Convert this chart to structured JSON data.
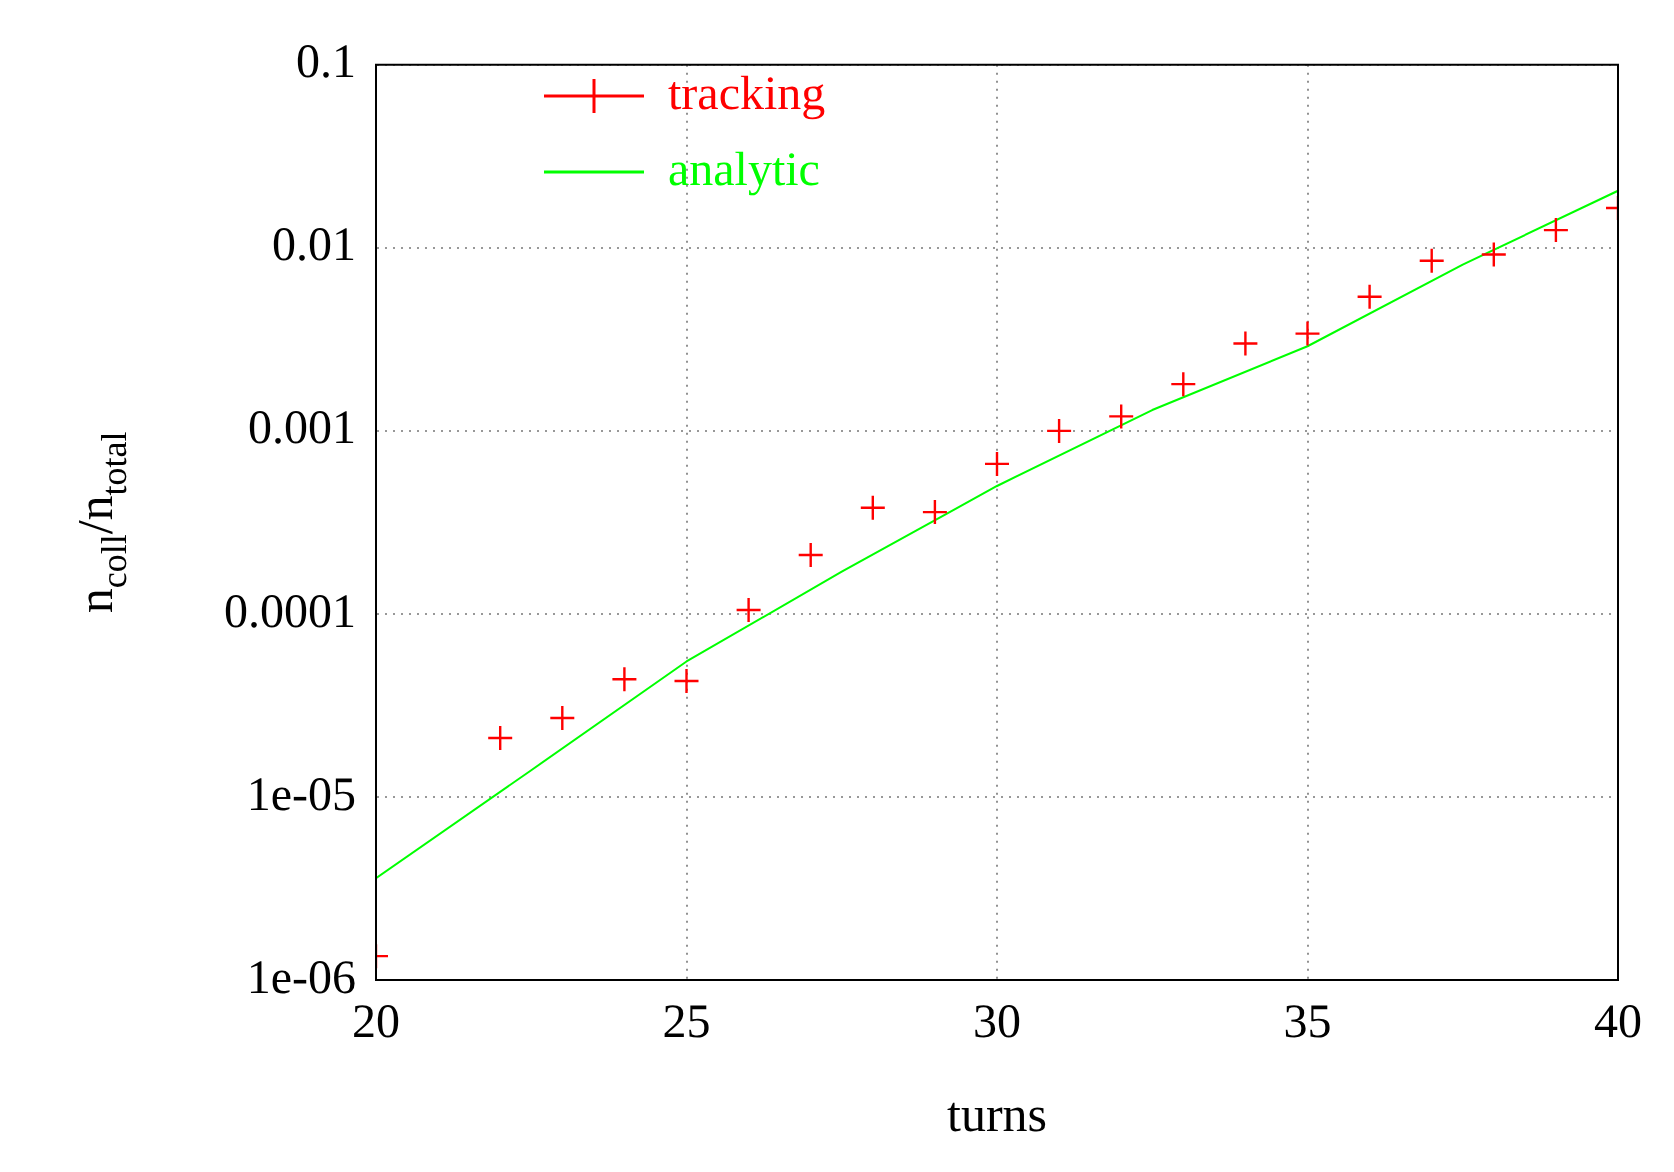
{
  "chart_data": {
    "type": "scatter",
    "xlabel": "turns",
    "ylabel": "n$_{coll}$/n$_{total}$",
    "xlim": [
      20,
      40
    ],
    "xticks": [
      20,
      25,
      30,
      35,
      40
    ],
    "ylim": [
      1e-06,
      0.1
    ],
    "yticks": [
      {
        "value": 1e-06,
        "label": "1e-06"
      },
      {
        "value": 1e-05,
        "label": "1e-05"
      },
      {
        "value": 0.0001,
        "label": "0.0001"
      },
      {
        "value": 0.001,
        "label": "0.001"
      },
      {
        "value": 0.01,
        "label": "0.01"
      },
      {
        "value": 0.1,
        "label": "0.1"
      }
    ],
    "log": "y",
    "grid": true,
    "legend": "top left",
    "series": [
      {
        "name": "tracking",
        "type": "scatter",
        "marker": "cross",
        "color": "#ff0000",
        "x": [
          20,
          22,
          23,
          24,
          25,
          26,
          27,
          28,
          29,
          30,
          31,
          32,
          33,
          34,
          35,
          36,
          37,
          38,
          39,
          40
        ],
        "values": [
          1.35e-06,
          2.1e-05,
          2.7e-05,
          4.4e-05,
          4.3e-05,
          0.000105,
          0.00021,
          0.00038,
          0.00036,
          0.00066,
          0.001,
          0.0012,
          0.0018,
          0.003,
          0.0034,
          0.0054,
          0.0085,
          0.0092,
          0.0125,
          0.0165
        ]
      },
      {
        "name": "analytic",
        "type": "line",
        "marker": "none",
        "color": "#00ff00",
        "x": [
          20,
          22.5,
          25,
          27.5,
          30,
          32.5,
          35,
          37.5,
          40
        ],
        "values": [
          3.6e-06,
          1.4e-05,
          5.5e-05,
          0.00017,
          0.0005,
          0.0013,
          0.0029,
          0.0081,
          0.0205
        ]
      }
    ]
  }
}
